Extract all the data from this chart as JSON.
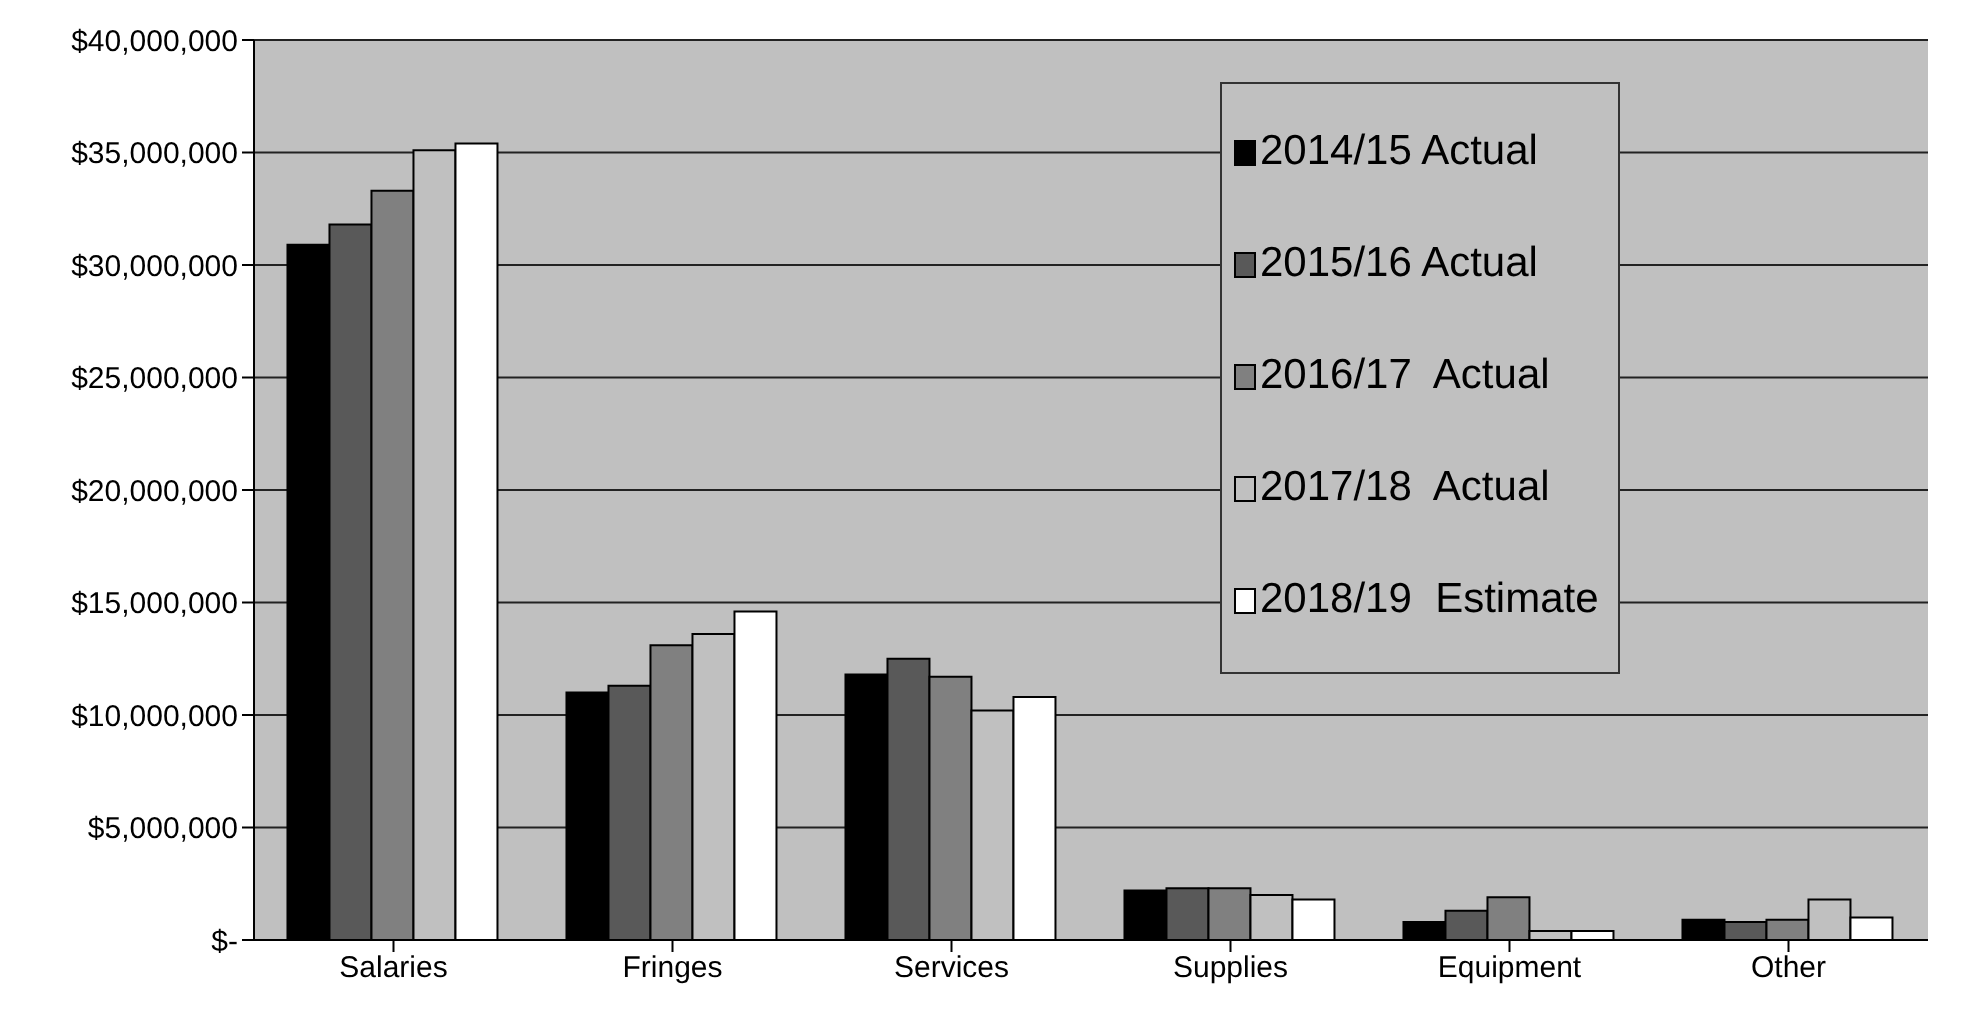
{
  "chart_data": {
    "type": "bar",
    "categories": [
      "Salaries",
      "Fringes",
      "Services",
      "Supplies",
      "Equipment",
      "Other"
    ],
    "series": [
      {
        "name": "2014/15 Actual",
        "color": "#000000",
        "values": [
          30900000,
          11000000,
          11800000,
          2200000,
          800000,
          900000
        ]
      },
      {
        "name": "2015/16 Actual",
        "color": "#595959",
        "values": [
          31800000,
          11300000,
          12500000,
          2300000,
          1300000,
          800000
        ]
      },
      {
        "name": "2016/17  Actual",
        "color": "#808080",
        "values": [
          33300000,
          13100000,
          11700000,
          2300000,
          1900000,
          900000
        ]
      },
      {
        "name": "2017/18  Actual",
        "color": "#c0c0c0",
        "values": [
          35100000,
          13600000,
          10200000,
          2000000,
          400000,
          1800000
        ]
      },
      {
        "name": "2018/19  Estimate",
        "color": "#ffffff",
        "values": [
          35400000,
          14600000,
          10800000,
          1800000,
          400000,
          1000000
        ]
      }
    ],
    "ylim": [
      0,
      40000000
    ],
    "yticks": [
      {
        "value": 0,
        "label": "$-"
      },
      {
        "value": 5000000,
        "label": "$5,000,000"
      },
      {
        "value": 10000000,
        "label": "$10,000,000"
      },
      {
        "value": 15000000,
        "label": "$15,000,000"
      },
      {
        "value": 20000000,
        "label": "$20,000,000"
      },
      {
        "value": 25000000,
        "label": "$25,000,000"
      },
      {
        "value": 30000000,
        "label": "$30,000,000"
      },
      {
        "value": 35000000,
        "label": "$35,000,000"
      },
      {
        "value": 40000000,
        "label": "$40,000,000"
      }
    ],
    "grid": "y",
    "legend": "top right"
  }
}
